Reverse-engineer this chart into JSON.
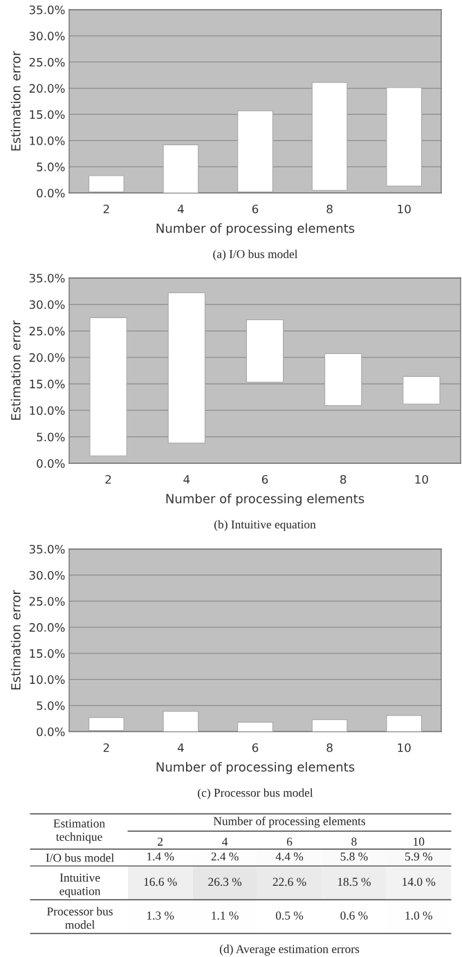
{
  "chart_data": [
    {
      "type": "bar",
      "title": "(a) I/O bus model",
      "xlabel": "Number of processing elements",
      "ylabel": "Estimation error",
      "categories": [
        "2",
        "4",
        "6",
        "8",
        "10"
      ],
      "series": [
        {
          "color": "#ffffff",
          "base": [
            0.2,
            0,
            0.2,
            0.5,
            1.3
          ],
          "values": [
            3.1,
            9.2,
            15.5,
            20.6,
            18.8
          ]
        }
      ],
      "ylim": [
        0,
        35
      ],
      "yticks": [
        {
          "value": 0,
          "label": "0.0%"
        },
        {
          "value": 5,
          "label": "5.0%"
        },
        {
          "value": 10,
          "label": "10.0%"
        },
        {
          "value": 15,
          "label": "15.0%"
        },
        {
          "value": 20,
          "label": "20.0%"
        },
        {
          "value": 25,
          "label": "25.0%"
        },
        {
          "value": 30,
          "label": "30.0%"
        },
        {
          "value": 35,
          "label": "35.0%"
        }
      ],
      "grid": "y"
    },
    {
      "type": "bar",
      "title": "(b) Intuitive equation",
      "xlabel": "Number of processing elements",
      "ylabel": "Estimation error",
      "categories": [
        "2",
        "4",
        "6",
        "8",
        "10"
      ],
      "series": [
        {
          "color": "#ffffff",
          "base": [
            1.4,
            3.8,
            15.3,
            10.9,
            11.2
          ],
          "values": [
            26.1,
            28.4,
            11.8,
            9.8,
            5.2
          ]
        }
      ],
      "ylim": [
        0,
        35
      ],
      "yticks": [
        {
          "value": 0,
          "label": "0.0%"
        },
        {
          "value": 5,
          "label": "5.0%"
        },
        {
          "value": 10,
          "label": "10.0%"
        },
        {
          "value": 15,
          "label": "15.0%"
        },
        {
          "value": 20,
          "label": "20.0%"
        },
        {
          "value": 25,
          "label": "25.0%"
        },
        {
          "value": 30,
          "label": "30.0%"
        },
        {
          "value": 35,
          "label": "35.0%"
        }
      ],
      "grid": "y"
    },
    {
      "type": "bar",
      "title": "(c) Processor bus model",
      "xlabel": "Number of processing elements",
      "ylabel": "Estimation error",
      "categories": [
        "2",
        "4",
        "6",
        "8",
        "10"
      ],
      "series": [
        {
          "color": "#ffffff",
          "base": [
            0.2,
            0,
            0,
            0,
            0
          ],
          "values": [
            2.5,
            3.9,
            1.8,
            2.3,
            3.1
          ]
        }
      ],
      "ylim": [
        0,
        35
      ],
      "yticks": [
        {
          "value": 0,
          "label": "0.0%"
        },
        {
          "value": 5,
          "label": "5.0%"
        },
        {
          "value": 10,
          "label": "10.0%"
        },
        {
          "value": 15,
          "label": "15.0%"
        },
        {
          "value": 20,
          "label": "20.0%"
        },
        {
          "value": 25,
          "label": "25.0%"
        },
        {
          "value": 30,
          "label": "30.0%"
        },
        {
          "value": 35,
          "label": "35.0%"
        }
      ],
      "grid": "y"
    },
    {
      "type": "heatmap",
      "title": "(d) Average estimation errors",
      "xlabel": "Number of processing elements",
      "ylabel": "Estimation technique",
      "categories": [
        "2",
        "4",
        "6",
        "8",
        "10"
      ],
      "y_categories": [
        "I/O bus model",
        "Intuitive equation",
        "Processor bus model"
      ],
      "cells": [
        [
          1.4,
          2.4,
          4.4,
          5.8,
          5.9
        ],
        [
          16.6,
          26.3,
          22.6,
          18.5,
          14.0
        ],
        [
          1.3,
          1.1,
          0.5,
          0.6,
          1.0
        ]
      ],
      "cell_labels": [
        [
          "1.4 %",
          "2.4 %",
          "4.4 %",
          "5.8 %",
          "5.9 %"
        ],
        [
          "16.6 %",
          "26.3 %",
          "22.6 %",
          "18.5 %",
          "14.0 %"
        ],
        [
          "1.3 %",
          "1.1 %",
          "0.5 %",
          "0.6 %",
          "1.0 %"
        ]
      ]
    }
  ]
}
